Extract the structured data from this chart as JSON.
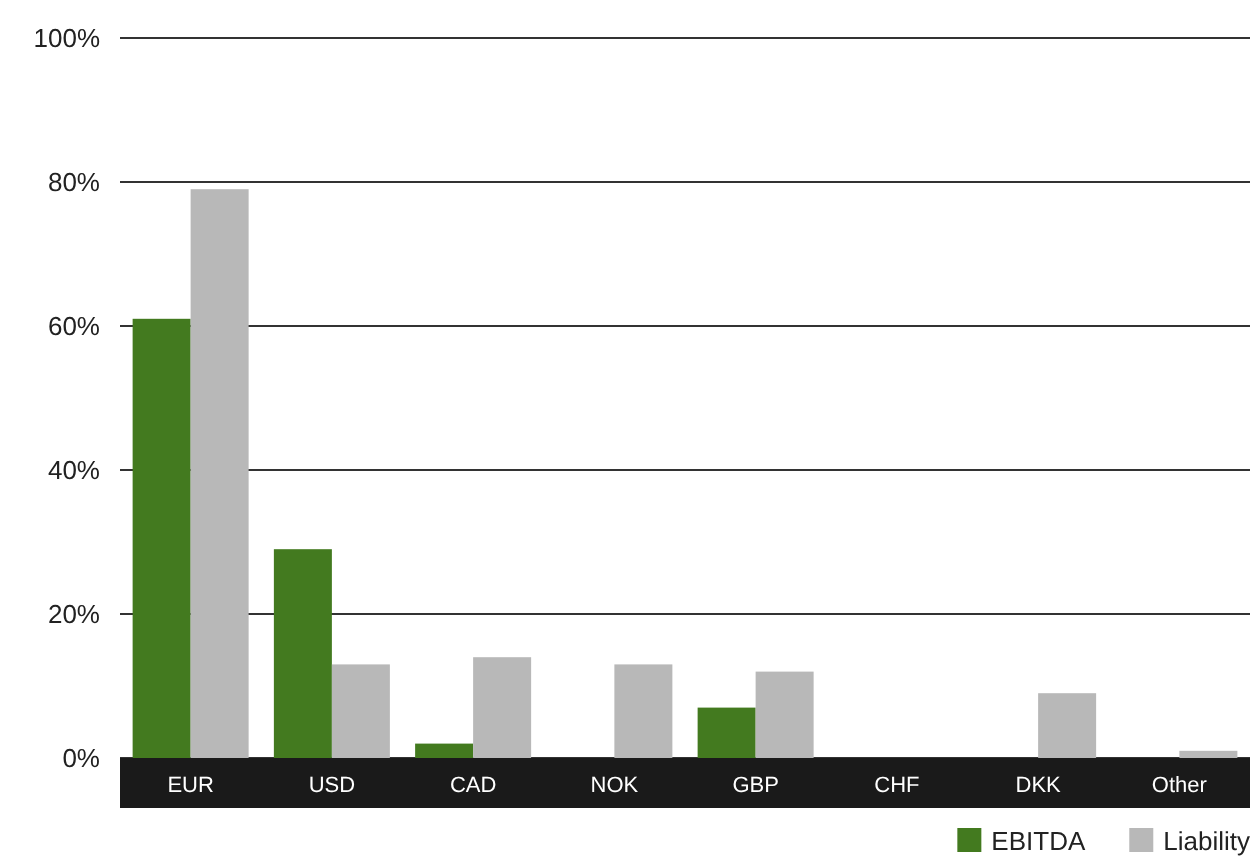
{
  "chart_data": {
    "type": "bar",
    "categories": [
      "EUR",
      "USD",
      "CAD",
      "NOK",
      "GBP",
      "CHF",
      "DKK",
      "Other"
    ],
    "series": [
      {
        "name": "EBITDA",
        "color": "#437a1f",
        "values": [
          61,
          29,
          2,
          0,
          7,
          0,
          0,
          0
        ]
      },
      {
        "name": "Liability",
        "color": "#b8b8b8",
        "values": [
          79,
          13,
          14,
          13,
          12,
          0,
          9,
          1
        ]
      }
    ],
    "ylim": [
      0,
      100
    ],
    "yticks": [
      {
        "value": 0,
        "label": "0%"
      },
      {
        "value": 20,
        "label": "20%"
      },
      {
        "value": 40,
        "label": "40%"
      },
      {
        "value": 60,
        "label": "60%"
      },
      {
        "value": 80,
        "label": "80%"
      },
      {
        "value": 100,
        "label": "100%"
      }
    ],
    "grid": "y",
    "legend": "bottom right"
  }
}
